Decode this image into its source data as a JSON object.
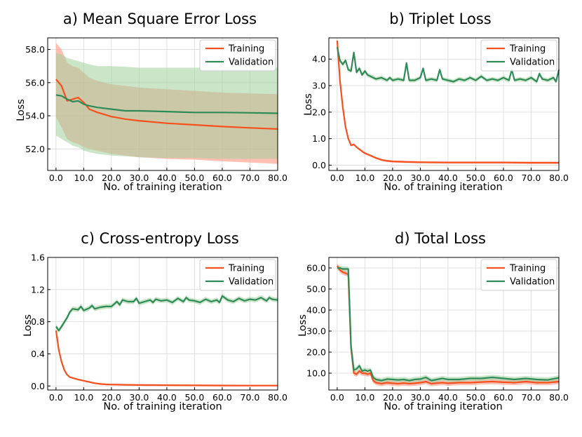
{
  "colors": {
    "training": "#f4511e",
    "validation": "#2e8b57",
    "training_band": "#ff9c8a",
    "validation_band": "#9fd09a"
  },
  "chart_data": [
    {
      "id": "mse",
      "type": "line",
      "title": "a) Mean Square Error Loss",
      "xlabel": "No. of training iteration",
      "ylabel": "Loss",
      "xlim": [
        -3,
        80
      ],
      "ylim": [
        50.7,
        58.7
      ],
      "xticks": [
        0,
        10,
        20,
        30,
        40,
        50,
        60,
        70,
        80
      ],
      "xtick_labels": [
        "0.0",
        "10.0",
        "20.0",
        "30.0",
        "40.0",
        "50.0",
        "60.0",
        "70.0",
        "80.0"
      ],
      "yticks": [
        52,
        54,
        56,
        58
      ],
      "ytick_labels": [
        "52.0",
        "54.0",
        "56.0",
        "58.0"
      ],
      "grid": true,
      "legend": "top-right",
      "series": [
        {
          "name": "Training",
          "band": "training_band",
          "color": "training",
          "x": [
            0,
            2,
            4,
            6,
            8,
            10,
            12,
            15,
            20,
            25,
            30,
            40,
            50,
            60,
            70,
            80
          ],
          "y": [
            56.2,
            55.8,
            54.9,
            55.0,
            55.1,
            54.8,
            54.4,
            54.2,
            53.95,
            53.8,
            53.7,
            53.55,
            53.45,
            53.35,
            53.27,
            53.2
          ],
          "lower": [
            53.9,
            53.3,
            52.6,
            52.4,
            52.3,
            52.1,
            52.0,
            51.9,
            51.7,
            51.6,
            51.5,
            51.4,
            51.35,
            51.25,
            51.18,
            51.1
          ],
          "upper": [
            58.4,
            58.0,
            57.2,
            57.0,
            56.9,
            56.6,
            56.3,
            56.1,
            55.9,
            55.8,
            55.7,
            55.6,
            55.5,
            55.4,
            55.35,
            55.3
          ]
        },
        {
          "name": "Validation",
          "band": "validation_band",
          "color": "validation",
          "x": [
            0,
            2,
            4,
            6,
            8,
            10,
            12,
            15,
            20,
            25,
            30,
            40,
            50,
            60,
            70,
            80
          ],
          "y": [
            55.25,
            55.2,
            55.0,
            54.85,
            54.9,
            54.7,
            54.6,
            54.5,
            54.4,
            54.3,
            54.3,
            54.25,
            54.2,
            54.2,
            54.18,
            54.15
          ],
          "lower": [
            52.8,
            52.6,
            52.4,
            52.2,
            52.1,
            51.9,
            51.8,
            51.7,
            51.6,
            51.55,
            51.5,
            51.45,
            51.45,
            51.4,
            51.4,
            51.4
          ],
          "upper": [
            57.8,
            57.7,
            57.5,
            57.4,
            57.3,
            57.2,
            57.1,
            57.0,
            57.0,
            56.95,
            56.9,
            56.9,
            56.9,
            56.9,
            56.9,
            56.9
          ]
        }
      ]
    },
    {
      "id": "triplet",
      "type": "line",
      "title": "b) Triplet Loss",
      "xlabel": "No. of training iteration",
      "ylabel": "Loss",
      "xlim": [
        -3,
        80
      ],
      "ylim": [
        -0.2,
        4.8
      ],
      "xticks": [
        0,
        10,
        20,
        30,
        40,
        50,
        60,
        70,
        80
      ],
      "xtick_labels": [
        "0.0",
        "10.0",
        "20.0",
        "30.0",
        "40.0",
        "50.0",
        "60.0",
        "70.0",
        "80.0"
      ],
      "yticks": [
        0,
        1,
        2,
        3,
        4
      ],
      "ytick_labels": [
        "0.0",
        "1.0",
        "2.0",
        "3.0",
        "4.0"
      ],
      "grid": true,
      "legend": "top-right",
      "series": [
        {
          "name": "Training",
          "color": "training",
          "band": "training_band",
          "band_width": 0.04,
          "x": [
            0,
            1,
            2,
            3,
            4,
            5,
            6,
            7,
            8,
            9,
            10,
            12,
            14,
            16,
            18,
            20,
            25,
            30,
            40,
            50,
            60,
            70,
            80
          ],
          "y": [
            4.7,
            3.2,
            2.2,
            1.45,
            1.0,
            0.75,
            0.78,
            0.68,
            0.6,
            0.52,
            0.45,
            0.36,
            0.27,
            0.2,
            0.16,
            0.14,
            0.12,
            0.11,
            0.1,
            0.1,
            0.1,
            0.09,
            0.09
          ]
        },
        {
          "name": "Validation",
          "color": "validation",
          "band": "validation_band",
          "band_width": 0.08,
          "x": [
            0,
            1,
            2,
            3,
            4,
            5,
            6,
            7,
            8,
            9,
            10,
            11,
            12,
            14,
            16,
            18,
            19,
            20,
            22,
            24,
            25,
            26,
            28,
            30,
            31,
            32,
            34,
            36,
            37,
            38,
            40,
            42,
            44,
            46,
            48,
            50,
            52,
            54,
            56,
            58,
            60,
            62,
            63,
            64,
            66,
            68,
            70,
            72,
            73,
            74,
            76,
            78,
            79,
            80
          ],
          "y": [
            4.45,
            3.95,
            3.8,
            3.95,
            3.6,
            3.55,
            4.25,
            3.5,
            3.65,
            3.4,
            3.55,
            3.4,
            3.35,
            3.25,
            3.3,
            3.2,
            3.3,
            3.2,
            3.25,
            3.2,
            3.85,
            3.2,
            3.2,
            3.3,
            3.65,
            3.2,
            3.25,
            3.2,
            3.6,
            3.25,
            3.2,
            3.15,
            3.25,
            3.2,
            3.3,
            3.2,
            3.35,
            3.2,
            3.25,
            3.2,
            3.3,
            3.2,
            3.6,
            3.2,
            3.25,
            3.2,
            3.3,
            3.15,
            3.45,
            3.25,
            3.2,
            3.3,
            3.15,
            3.6
          ]
        }
      ]
    },
    {
      "id": "crossentropy",
      "type": "line",
      "title": "c) Cross-entropy Loss",
      "xlabel": "No. of training iteration",
      "ylabel": "Loss",
      "xlim": [
        -3,
        80
      ],
      "ylim": [
        -0.05,
        1.6
      ],
      "xticks": [
        0,
        10,
        20,
        30,
        40,
        50,
        60,
        70,
        80
      ],
      "xtick_labels": [
        "0.0",
        "10.0",
        "20.0",
        "30.0",
        "40.0",
        "50.0",
        "60.0",
        "70.0",
        "80.0"
      ],
      "yticks": [
        0,
        0.4,
        0.8,
        1.2,
        1.6
      ],
      "ytick_labels": [
        "0.0",
        "0.4",
        "0.8",
        "1.2",
        "1.6"
      ],
      "grid": true,
      "legend": "top-right",
      "series": [
        {
          "name": "Training",
          "color": "training",
          "band": "training_band",
          "band_width": 0.01,
          "x": [
            0,
            1,
            2,
            3,
            4,
            5,
            6,
            8,
            10,
            12,
            14,
            16,
            18,
            20,
            25,
            30,
            40,
            50,
            60,
            70,
            80
          ],
          "y": [
            0.69,
            0.45,
            0.3,
            0.2,
            0.14,
            0.11,
            0.1,
            0.08,
            0.065,
            0.05,
            0.035,
            0.025,
            0.02,
            0.018,
            0.015,
            0.012,
            0.01,
            0.008,
            0.006,
            0.005,
            0.005
          ]
        },
        {
          "name": "Validation",
          "color": "validation",
          "band": "validation_band",
          "band_width": 0.03,
          "x": [
            0,
            1,
            2,
            4,
            5,
            6,
            8,
            9,
            10,
            12,
            13,
            14,
            16,
            18,
            20,
            22,
            23,
            24,
            26,
            28,
            29,
            30,
            32,
            34,
            35,
            36,
            38,
            40,
            42,
            44,
            46,
            47,
            48,
            50,
            52,
            54,
            56,
            58,
            59,
            60,
            62,
            64,
            66,
            68,
            70,
            72,
            74,
            76,
            77,
            78,
            80
          ],
          "y": [
            0.74,
            0.69,
            0.74,
            0.85,
            0.92,
            0.96,
            0.95,
            0.99,
            0.94,
            0.97,
            1.0,
            0.96,
            0.98,
            0.99,
            0.99,
            1.05,
            1.01,
            1.07,
            1.05,
            1.05,
            1.09,
            1.03,
            1.05,
            1.07,
            1.04,
            1.08,
            1.06,
            1.07,
            1.04,
            1.09,
            1.05,
            1.1,
            1.07,
            1.06,
            1.04,
            1.08,
            1.05,
            1.07,
            1.04,
            1.12,
            1.07,
            1.05,
            1.09,
            1.06,
            1.08,
            1.07,
            1.1,
            1.06,
            1.1,
            1.08,
            1.07
          ]
        }
      ]
    },
    {
      "id": "total",
      "type": "line",
      "title": "d) Total Loss",
      "xlabel": "No. of training iteration",
      "ylabel": "Loss",
      "xlim": [
        -3,
        80
      ],
      "ylim": [
        2,
        65
      ],
      "xticks": [
        0,
        10,
        20,
        30,
        40,
        50,
        60,
        70,
        80
      ],
      "xtick_labels": [
        "0.0",
        "10.0",
        "20.0",
        "30.0",
        "40.0",
        "50.0",
        "60.0",
        "70.0",
        "80.0"
      ],
      "yticks": [
        10,
        20,
        30,
        40,
        50,
        60
      ],
      "ytick_labels": [
        "10.0",
        "20.0",
        "30.0",
        "40.0",
        "50.0",
        "60.0"
      ],
      "grid": true,
      "legend": "top-right",
      "series": [
        {
          "name": "Training",
          "color": "training",
          "band": "training_band",
          "band_width": 1.2,
          "x": [
            0,
            1,
            2,
            3,
            4,
            5,
            6,
            7,
            8,
            9,
            10,
            11,
            12,
            13,
            14,
            16,
            18,
            20,
            22,
            24,
            26,
            28,
            30,
            32,
            34,
            36,
            38,
            40,
            44,
            48,
            52,
            56,
            60,
            64,
            68,
            72,
            76,
            80
          ],
          "y": [
            61,
            59,
            58,
            57.5,
            57,
            22,
            10,
            9.5,
            11,
            10,
            10,
            9.5,
            10,
            6.5,
            5.5,
            5.0,
            5.5,
            5.2,
            5.0,
            5.3,
            5.0,
            5.2,
            5.5,
            6.0,
            5.0,
            5.3,
            5.5,
            5.2,
            5.5,
            5.5,
            5.8,
            6.0,
            5.7,
            5.5,
            6.0,
            5.5,
            5.5,
            6.0
          ]
        },
        {
          "name": "Validation",
          "color": "validation",
          "band": "validation_band",
          "band_width": 1.2,
          "x": [
            0,
            1,
            2,
            3,
            4,
            5,
            6,
            7,
            8,
            9,
            10,
            11,
            12,
            13,
            14,
            16,
            18,
            20,
            22,
            24,
            26,
            28,
            30,
            32,
            34,
            36,
            38,
            40,
            44,
            48,
            52,
            56,
            60,
            64,
            68,
            72,
            76,
            80
          ],
          "y": [
            60,
            60,
            59.5,
            59.5,
            59.5,
            23,
            11.5,
            12,
            13.5,
            11,
            11.5,
            11,
            11.5,
            8,
            7,
            6.5,
            7.2,
            7.0,
            6.8,
            7.0,
            6.5,
            7.0,
            7.2,
            8.0,
            6.5,
            7.0,
            7.5,
            7.0,
            7.0,
            7.5,
            7.5,
            8.0,
            7.5,
            7.0,
            7.5,
            7.0,
            6.8,
            7.8
          ]
        }
      ]
    }
  ]
}
